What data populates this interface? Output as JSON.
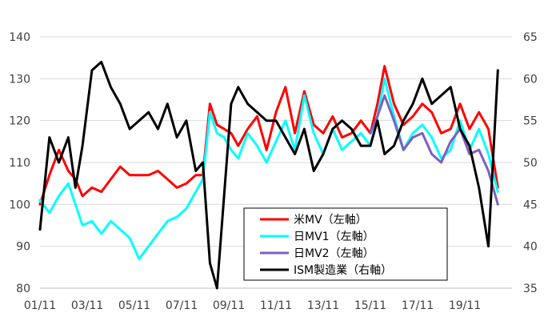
{
  "chart_data": {
    "type": "line",
    "title": "",
    "xlabel": "",
    "ylabel_left": "",
    "ylabel_right": "",
    "ylim_left": [
      80,
      140
    ],
    "yticks_left": [
      80,
      90,
      100,
      110,
      120,
      130,
      140
    ],
    "ylim_right": [
      35,
      65
    ],
    "yticks_right": [
      35,
      40,
      45,
      50,
      55,
      60,
      65
    ],
    "xlim": [
      2001.0,
      2021.0
    ],
    "xticks": [
      {
        "x": 2001.0,
        "label": "01/11"
      },
      {
        "x": 2003.0,
        "label": "03/11"
      },
      {
        "x": 2005.0,
        "label": "05/11"
      },
      {
        "x": 2007.0,
        "label": "07/11"
      },
      {
        "x": 2009.0,
        "label": "09/11"
      },
      {
        "x": 2011.0,
        "label": "11/11"
      },
      {
        "x": 2013.0,
        "label": "13/11"
      },
      {
        "x": 2015.0,
        "label": "15/11"
      },
      {
        "x": 2017.0,
        "label": "17/11"
      },
      {
        "x": 2019.0,
        "label": "19/11"
      }
    ],
    "grid": true,
    "legend_position": "bottom-center",
    "series": [
      {
        "name": "米MV（左軸）",
        "axis": "left",
        "color": "#ff0000",
        "x": [
          2001.0,
          2001.4,
          2001.8,
          2002.2,
          2002.5,
          2002.8,
          2003.2,
          2003.6,
          2004.0,
          2004.4,
          2004.8,
          2005.2,
          2005.6,
          2006.0,
          2006.4,
          2006.8,
          2007.2,
          2007.6,
          2007.9,
          2008.2,
          2008.5,
          2008.8,
          2009.1,
          2009.4,
          2009.8,
          2010.2,
          2010.6,
          2011.0,
          2011.4,
          2011.8,
          2012.2,
          2012.6,
          2013.0,
          2013.4,
          2013.8,
          2014.2,
          2014.6,
          2015.0,
          2015.3,
          2015.6,
          2016.0,
          2016.4,
          2016.8,
          2017.2,
          2017.6,
          2018.0,
          2018.4,
          2018.8,
          2019.2,
          2019.6,
          2020.0,
          2020.4
        ],
        "y": [
          100,
          107,
          113,
          108,
          106,
          102,
          104,
          103,
          106,
          109,
          107,
          107,
          107,
          108,
          106,
          104,
          105,
          107,
          107,
          124,
          119,
          118,
          117,
          114,
          118,
          121,
          113,
          122,
          128,
          117,
          127,
          119,
          117,
          121,
          116,
          117,
          120,
          117,
          124,
          133,
          124,
          119,
          121,
          124,
          122,
          117,
          118,
          124,
          118,
          122,
          118,
          104
        ]
      },
      {
        "name": "日MV1（左軸）",
        "axis": "left",
        "color": "#00ffff",
        "x": [
          2001.0,
          2001.4,
          2001.8,
          2002.2,
          2002.5,
          2002.8,
          2003.2,
          2003.6,
          2004.0,
          2004.4,
          2004.8,
          2005.2,
          2005.6,
          2006.0,
          2006.4,
          2006.8,
          2007.2,
          2007.6,
          2007.9,
          2008.2,
          2008.5,
          2008.8,
          2009.1,
          2009.4,
          2009.8,
          2010.2,
          2010.6,
          2011.0,
          2011.4,
          2011.8,
          2012.2,
          2012.6,
          2013.0,
          2013.4,
          2013.8,
          2014.2,
          2014.6,
          2015.0,
          2015.3,
          2015.6,
          2016.0,
          2016.4,
          2016.8,
          2017.2,
          2017.6,
          2018.0,
          2018.4,
          2018.8,
          2019.2,
          2019.6,
          2020.0,
          2020.4
        ],
        "y": [
          101,
          98,
          102,
          105,
          100,
          95,
          96,
          93,
          96,
          94,
          92,
          87,
          90,
          93,
          96,
          97,
          99,
          103,
          106,
          122,
          117,
          116,
          113,
          111,
          117,
          114,
          110,
          115,
          120,
          113,
          126,
          117,
          112,
          118,
          113,
          115,
          117,
          114,
          121,
          130,
          121,
          113,
          117,
          119,
          116,
          111,
          113,
          120,
          113,
          118,
          112,
          103
        ]
      },
      {
        "name": "日MV2（左軸）",
        "axis": "left",
        "color": "#7f5fbf",
        "x": [
          2015.0,
          2015.3,
          2015.6,
          2016.0,
          2016.4,
          2016.8,
          2017.2,
          2017.6,
          2018.0,
          2018.4,
          2018.8,
          2019.2,
          2019.6,
          2020.0,
          2020.4
        ],
        "y": [
          117,
          121,
          126,
          120,
          113,
          116,
          117,
          112,
          110,
          115,
          118,
          112,
          113,
          108,
          100
        ]
      },
      {
        "name": "ISM製造業（右軸）",
        "axis": "right",
        "color": "#000000",
        "x": [
          2001.0,
          2001.4,
          2001.8,
          2002.2,
          2002.5,
          2002.8,
          2003.2,
          2003.6,
          2004.0,
          2004.4,
          2004.8,
          2005.2,
          2005.6,
          2006.0,
          2006.4,
          2006.8,
          2007.2,
          2007.6,
          2007.9,
          2008.2,
          2008.5,
          2008.8,
          2009.1,
          2009.4,
          2009.8,
          2010.2,
          2010.6,
          2011.0,
          2011.4,
          2011.8,
          2012.2,
          2012.6,
          2013.0,
          2013.4,
          2013.8,
          2014.2,
          2014.6,
          2015.0,
          2015.3,
          2015.6,
          2016.0,
          2016.4,
          2016.8,
          2017.2,
          2017.6,
          2018.0,
          2018.4,
          2018.8,
          2019.2,
          2019.6,
          2020.0,
          2020.4
        ],
        "y": [
          42,
          53,
          50,
          53,
          47,
          52,
          61,
          62,
          59,
          57,
          54,
          55,
          56,
          54,
          57,
          53,
          55,
          49,
          50,
          38,
          35,
          46,
          57,
          59,
          57,
          56,
          55,
          55,
          53,
          51,
          54,
          49,
          51,
          54,
          55,
          54,
          52,
          52,
          55,
          51,
          52,
          55,
          57,
          60,
          57,
          58,
          59,
          54,
          52,
          47,
          40,
          61
        ]
      }
    ]
  }
}
